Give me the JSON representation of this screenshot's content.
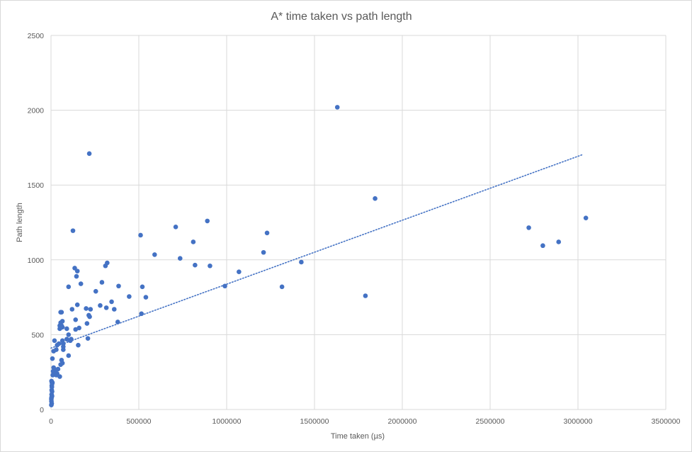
{
  "chart_data": {
    "type": "scatter",
    "title": "A* time taken vs path length",
    "xlabel": "Time taken (µs)",
    "ylabel": "Path length",
    "xlim": [
      0,
      3500000
    ],
    "ylim": [
      0,
      2500
    ],
    "x_ticks": [
      0,
      500000,
      1000000,
      1500000,
      2000000,
      2500000,
      3000000,
      3500000
    ],
    "y_ticks": [
      0,
      500,
      1000,
      1500,
      2000,
      2500
    ],
    "grid": true,
    "legend": "none",
    "colors": {
      "points": "#4472c4",
      "trendline": "#4472c4",
      "grid": "#d9d9d9",
      "text": "#595959"
    },
    "series": [
      {
        "points": [
          [
            2000,
            30
          ],
          [
            2500,
            55
          ],
          [
            3000,
            80
          ],
          [
            3500,
            100
          ],
          [
            4000,
            130
          ],
          [
            4500,
            160
          ],
          [
            5000,
            180
          ],
          [
            3000,
            190
          ],
          [
            5000,
            150
          ],
          [
            6000,
            120
          ],
          [
            2000,
            70
          ],
          [
            7000,
            175
          ],
          [
            8000,
            180
          ],
          [
            4000,
            40
          ],
          [
            6000,
            90
          ],
          [
            10000,
            230
          ],
          [
            12000,
            255
          ],
          [
            15000,
            280
          ],
          [
            18000,
            260
          ],
          [
            20000,
            250
          ],
          [
            25000,
            240
          ],
          [
            28000,
            265
          ],
          [
            30000,
            230
          ],
          [
            35000,
            240
          ],
          [
            40000,
            270
          ],
          [
            50000,
            220
          ],
          [
            8000,
            340
          ],
          [
            15000,
            390
          ],
          [
            20000,
            460
          ],
          [
            30000,
            400
          ],
          [
            35000,
            430
          ],
          [
            45000,
            440
          ],
          [
            50000,
            540
          ],
          [
            50000,
            560
          ],
          [
            55000,
            580
          ],
          [
            55000,
            650
          ],
          [
            60000,
            650
          ],
          [
            60000,
            560
          ],
          [
            65000,
            590
          ],
          [
            65000,
            550
          ],
          [
            55000,
            300
          ],
          [
            60000,
            330
          ],
          [
            65000,
            310
          ],
          [
            65000,
            460
          ],
          [
            70000,
            420
          ],
          [
            70000,
            440
          ],
          [
            70000,
            400
          ],
          [
            90000,
            470
          ],
          [
            90000,
            540
          ],
          [
            100000,
            360
          ],
          [
            100000,
            500
          ],
          [
            100000,
            820
          ],
          [
            110000,
            460
          ],
          [
            115000,
            470
          ],
          [
            120000,
            670
          ],
          [
            125000,
            1195
          ],
          [
            135000,
            945
          ],
          [
            140000,
            600
          ],
          [
            140000,
            535
          ],
          [
            145000,
            890
          ],
          [
            150000,
            700
          ],
          [
            150000,
            925
          ],
          [
            155000,
            430
          ],
          [
            160000,
            545
          ],
          [
            170000,
            840
          ],
          [
            200000,
            675
          ],
          [
            205000,
            575
          ],
          [
            210000,
            475
          ],
          [
            215000,
            630
          ],
          [
            218000,
            1710
          ],
          [
            220000,
            620
          ],
          [
            225000,
            670
          ],
          [
            255000,
            790
          ],
          [
            280000,
            695
          ],
          [
            290000,
            850
          ],
          [
            310000,
            960
          ],
          [
            315000,
            680
          ],
          [
            320000,
            980
          ],
          [
            345000,
            720
          ],
          [
            360000,
            670
          ],
          [
            380000,
            585
          ],
          [
            385000,
            825
          ],
          [
            445000,
            755
          ],
          [
            510000,
            1165
          ],
          [
            515000,
            640
          ],
          [
            520000,
            820
          ],
          [
            540000,
            750
          ],
          [
            590000,
            1035
          ],
          [
            710000,
            1220
          ],
          [
            735000,
            1010
          ],
          [
            810000,
            1120
          ],
          [
            820000,
            965
          ],
          [
            890000,
            1260
          ],
          [
            905000,
            960
          ],
          [
            990000,
            825
          ],
          [
            1070000,
            920
          ],
          [
            1210000,
            1050
          ],
          [
            1230000,
            1180
          ],
          [
            1315000,
            820
          ],
          [
            1425000,
            985
          ],
          [
            1630000,
            2020
          ],
          [
            1790000,
            760
          ],
          [
            1845000,
            1410
          ],
          [
            2720000,
            1215
          ],
          [
            2800000,
            1095
          ],
          [
            2890000,
            1120
          ],
          [
            3045000,
            1280
          ]
        ],
        "trendline": {
          "type": "linear",
          "style": "dotted",
          "x": [
            0,
            3030000
          ],
          "y": [
            410,
            1705
          ]
        }
      }
    ]
  }
}
